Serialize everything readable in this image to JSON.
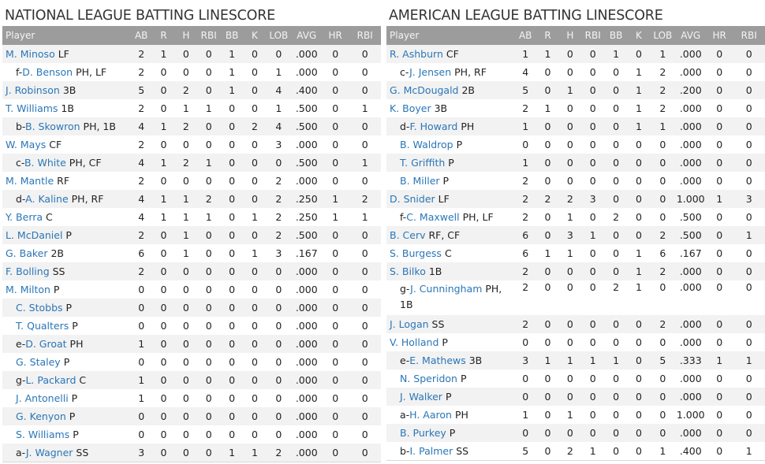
{
  "columns": [
    "Player",
    "AB",
    "R",
    "H",
    "RBI",
    "BB",
    "K",
    "LOB",
    "AVG",
    "HR",
    "RBI"
  ],
  "leagues": [
    {
      "title": "NATIONAL LEAGUE BATTING LINESCORE",
      "rows": [
        {
          "prefix": "",
          "name": "M. Minoso",
          "pos": "LF",
          "stats": [
            "2",
            "1",
            "0",
            "0",
            "1",
            "0",
            "0",
            ".000",
            "0",
            "0"
          ]
        },
        {
          "prefix": "f-",
          "name": "D. Benson",
          "pos": "PH, LF",
          "stats": [
            "2",
            "0",
            "0",
            "0",
            "1",
            "0",
            "1",
            ".000",
            "0",
            "0"
          ]
        },
        {
          "prefix": "",
          "name": "J. Robinson",
          "pos": "3B",
          "stats": [
            "5",
            "0",
            "2",
            "0",
            "1",
            "0",
            "4",
            ".400",
            "0",
            "0"
          ]
        },
        {
          "prefix": "",
          "name": "T. Williams",
          "pos": "1B",
          "stats": [
            "2",
            "0",
            "1",
            "1",
            "0",
            "0",
            "1",
            ".500",
            "0",
            "1"
          ]
        },
        {
          "prefix": "b-",
          "name": "B. Skowron",
          "pos": "PH, 1B",
          "stats": [
            "4",
            "1",
            "2",
            "0",
            "0",
            "2",
            "4",
            ".500",
            "0",
            "0"
          ]
        },
        {
          "prefix": "",
          "name": "W. Mays",
          "pos": "CF",
          "stats": [
            "2",
            "0",
            "0",
            "0",
            "0",
            "0",
            "3",
            ".000",
            "0",
            "0"
          ]
        },
        {
          "prefix": "c-",
          "name": "B. White",
          "pos": "PH, CF",
          "stats": [
            "4",
            "1",
            "2",
            "1",
            "0",
            "0",
            "0",
            ".500",
            "0",
            "1"
          ]
        },
        {
          "prefix": "",
          "name": "M. Mantle",
          "pos": "RF",
          "stats": [
            "2",
            "0",
            "0",
            "0",
            "0",
            "0",
            "2",
            ".000",
            "0",
            "0"
          ]
        },
        {
          "prefix": "d-",
          "name": "A. Kaline",
          "pos": "PH, RF",
          "stats": [
            "4",
            "1",
            "1",
            "2",
            "0",
            "0",
            "2",
            ".250",
            "1",
            "2"
          ]
        },
        {
          "prefix": "",
          "name": "Y. Berra",
          "pos": "C",
          "stats": [
            "4",
            "1",
            "1",
            "1",
            "0",
            "1",
            "2",
            ".250",
            "1",
            "1"
          ]
        },
        {
          "prefix": "",
          "name": "L. McDaniel",
          "pos": "P",
          "stats": [
            "2",
            "0",
            "1",
            "0",
            "0",
            "0",
            "2",
            ".500",
            "0",
            "0"
          ]
        },
        {
          "prefix": "",
          "name": "G. Baker",
          "pos": "2B",
          "stats": [
            "6",
            "0",
            "1",
            "0",
            "0",
            "1",
            "3",
            ".167",
            "0",
            "0"
          ]
        },
        {
          "prefix": "",
          "name": "F. Bolling",
          "pos": "SS",
          "stats": [
            "2",
            "0",
            "0",
            "0",
            "0",
            "0",
            "0",
            ".000",
            "0",
            "0"
          ]
        },
        {
          "prefix": "",
          "name": "M. Milton",
          "pos": "P",
          "stats": [
            "0",
            "0",
            "0",
            "0",
            "0",
            "0",
            "0",
            ".000",
            "0",
            "0"
          ]
        },
        {
          "prefix": "",
          "name": "C. Stobbs",
          "pos": "P",
          "stats": [
            "0",
            "0",
            "0",
            "0",
            "0",
            "0",
            "0",
            ".000",
            "0",
            "0"
          ]
        },
        {
          "prefix": "",
          "name": "T. Qualters",
          "pos": "P",
          "stats": [
            "0",
            "0",
            "0",
            "0",
            "0",
            "0",
            "0",
            ".000",
            "0",
            "0"
          ]
        },
        {
          "prefix": "e-",
          "name": "D. Groat",
          "pos": "PH",
          "stats": [
            "1",
            "0",
            "0",
            "0",
            "0",
            "0",
            "0",
            ".000",
            "0",
            "0"
          ]
        },
        {
          "prefix": "",
          "name": "G. Staley",
          "pos": "P",
          "stats": [
            "0",
            "0",
            "0",
            "0",
            "0",
            "0",
            "0",
            ".000",
            "0",
            "0"
          ]
        },
        {
          "prefix": "g-",
          "name": "L. Packard",
          "pos": "C",
          "stats": [
            "1",
            "0",
            "0",
            "0",
            "0",
            "0",
            "0",
            ".000",
            "0",
            "0"
          ]
        },
        {
          "prefix": "",
          "name": "J. Antonelli",
          "pos": "P",
          "stats": [
            "1",
            "0",
            "0",
            "0",
            "0",
            "0",
            "0",
            ".000",
            "0",
            "0"
          ]
        },
        {
          "prefix": "",
          "name": "G. Kenyon",
          "pos": "P",
          "stats": [
            "0",
            "0",
            "0",
            "0",
            "0",
            "0",
            "0",
            ".000",
            "0",
            "0"
          ]
        },
        {
          "prefix": "",
          "name": "S. Williams",
          "pos": "P",
          "stats": [
            "0",
            "0",
            "0",
            "0",
            "0",
            "0",
            "0",
            ".000",
            "0",
            "0"
          ]
        },
        {
          "prefix": "a-",
          "name": "J. Wagner",
          "pos": "SS",
          "stats": [
            "3",
            "0",
            "0",
            "0",
            "1",
            "1",
            "2",
            ".000",
            "0",
            "0"
          ]
        }
      ]
    },
    {
      "title": "AMERICAN LEAGUE BATTING LINESCORE",
      "rows": [
        {
          "prefix": "",
          "name": "R. Ashburn",
          "pos": "CF",
          "stats": [
            "1",
            "1",
            "0",
            "0",
            "1",
            "0",
            "1",
            ".000",
            "0",
            "0"
          ]
        },
        {
          "prefix": "c-",
          "name": "J. Jensen",
          "pos": "PH, RF",
          "stats": [
            "4",
            "0",
            "0",
            "0",
            "0",
            "1",
            "2",
            ".000",
            "0",
            "0"
          ]
        },
        {
          "prefix": "",
          "name": "G. McDougald",
          "pos": "2B",
          "stats": [
            "5",
            "0",
            "1",
            "0",
            "0",
            "1",
            "2",
            ".200",
            "0",
            "0"
          ]
        },
        {
          "prefix": "",
          "name": "K. Boyer",
          "pos": "3B",
          "stats": [
            "2",
            "1",
            "0",
            "0",
            "0",
            "1",
            "2",
            ".000",
            "0",
            "0"
          ]
        },
        {
          "prefix": "d-",
          "name": "F. Howard",
          "pos": "PH",
          "stats": [
            "1",
            "0",
            "0",
            "0",
            "0",
            "1",
            "1",
            ".000",
            "0",
            "0"
          ]
        },
        {
          "prefix": "",
          "name": "B. Waldrop",
          "pos": "P",
          "stats": [
            "0",
            "0",
            "0",
            "0",
            "0",
            "0",
            "0",
            ".000",
            "0",
            "0"
          ]
        },
        {
          "prefix": "",
          "name": "T. Griffith",
          "pos": "P",
          "stats": [
            "1",
            "0",
            "0",
            "0",
            "0",
            "0",
            "0",
            ".000",
            "0",
            "0"
          ]
        },
        {
          "prefix": "",
          "name": "B. Miller",
          "pos": "P",
          "stats": [
            "2",
            "0",
            "0",
            "0",
            "0",
            "0",
            "0",
            ".000",
            "0",
            "0"
          ]
        },
        {
          "prefix": "",
          "name": "D. Snider",
          "pos": "LF",
          "stats": [
            "2",
            "2",
            "2",
            "3",
            "0",
            "0",
            "0",
            "1.000",
            "1",
            "3"
          ]
        },
        {
          "prefix": "f-",
          "name": "C. Maxwell",
          "pos": "PH, LF",
          "stats": [
            "2",
            "0",
            "1",
            "0",
            "2",
            "0",
            "0",
            ".500",
            "0",
            "0"
          ]
        },
        {
          "prefix": "",
          "name": "B. Cerv",
          "pos": "RF, CF",
          "stats": [
            "6",
            "0",
            "3",
            "1",
            "0",
            "0",
            "2",
            ".500",
            "0",
            "1"
          ]
        },
        {
          "prefix": "",
          "name": "S. Burgess",
          "pos": "C",
          "stats": [
            "6",
            "1",
            "1",
            "0",
            "0",
            "1",
            "6",
            ".167",
            "0",
            "0"
          ]
        },
        {
          "prefix": "",
          "name": "S. Bilko",
          "pos": "1B",
          "stats": [
            "2",
            "0",
            "0",
            "0",
            "0",
            "1",
            "2",
            ".000",
            "0",
            "0"
          ]
        },
        {
          "prefix": "g-",
          "name": "J. Cunningham",
          "pos": "PH, 1B",
          "stats": [
            "2",
            "0",
            "0",
            "0",
            "2",
            "1",
            "0",
            ".000",
            "0",
            "0"
          ]
        },
        {
          "prefix": "",
          "name": "J. Logan",
          "pos": "SS",
          "stats": [
            "2",
            "0",
            "0",
            "0",
            "0",
            "0",
            "2",
            ".000",
            "0",
            "0"
          ]
        },
        {
          "prefix": "",
          "name": "V. Holland",
          "pos": "P",
          "stats": [
            "0",
            "0",
            "0",
            "0",
            "0",
            "0",
            "0",
            ".000",
            "0",
            "0"
          ]
        },
        {
          "prefix": "e-",
          "name": "E. Mathews",
          "pos": "3B",
          "stats": [
            "3",
            "1",
            "1",
            "1",
            "1",
            "0",
            "5",
            ".333",
            "1",
            "1"
          ]
        },
        {
          "prefix": "",
          "name": "N. Speridon",
          "pos": "P",
          "stats": [
            "0",
            "0",
            "0",
            "0",
            "0",
            "0",
            "0",
            ".000",
            "0",
            "0"
          ]
        },
        {
          "prefix": "",
          "name": "J. Walker",
          "pos": "P",
          "stats": [
            "0",
            "0",
            "0",
            "0",
            "0",
            "0",
            "0",
            ".000",
            "0",
            "0"
          ]
        },
        {
          "prefix": "a-",
          "name": "H. Aaron",
          "pos": "PH",
          "stats": [
            "1",
            "0",
            "1",
            "0",
            "0",
            "0",
            "0",
            "1.000",
            "0",
            "0"
          ]
        },
        {
          "prefix": "",
          "name": "B. Purkey",
          "pos": "P",
          "stats": [
            "0",
            "0",
            "0",
            "0",
            "0",
            "0",
            "0",
            ".000",
            "0",
            "0"
          ]
        },
        {
          "prefix": "b-",
          "name": "I. Palmer",
          "pos": "SS",
          "stats": [
            "5",
            "0",
            "2",
            "1",
            "0",
            "0",
            "1",
            ".400",
            "0",
            "1"
          ]
        }
      ]
    }
  ]
}
